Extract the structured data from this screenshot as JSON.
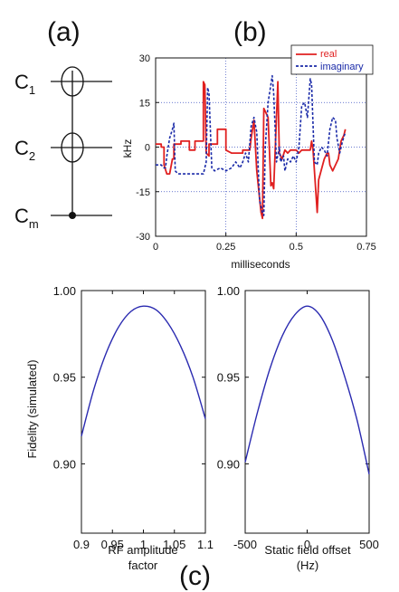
{
  "panels": {
    "a": "(a)",
    "b": "(b)",
    "c": "(c)"
  },
  "circuit": {
    "qubits": [
      {
        "main": "C",
        "sub": "1",
        "type": "target"
      },
      {
        "main": "C",
        "sub": "2",
        "type": "target"
      },
      {
        "main": "C",
        "sub": "m",
        "type": "control"
      }
    ]
  },
  "colors": {
    "real": "#e02020",
    "imaginary": "#1a2aa8",
    "fidelity": "#2a2ab0",
    "grid": "#3a4fc0"
  },
  "chart_data": [
    {
      "type": "line",
      "xlabel": "milliseconds",
      "ylabel": "kHz",
      "xlim": [
        0,
        0.75
      ],
      "ylim": [
        -30,
        30
      ],
      "xticks": [
        "0",
        "0.25",
        "0.5",
        "0.75"
      ],
      "yticks": [
        "30",
        "15",
        "0",
        "-15",
        "-30"
      ],
      "grid": true,
      "legend_position": "top-right",
      "series": [
        {
          "name": "real",
          "style": "solid",
          "points": [
            [
              0,
              1
            ],
            [
              0.02,
              1
            ],
            [
              0.02,
              0
            ],
            [
              0.03,
              0
            ],
            [
              0.03,
              -6
            ],
            [
              0.04,
              -9
            ],
            [
              0.05,
              -9
            ],
            [
              0.06,
              -4
            ],
            [
              0.065,
              -4
            ],
            [
              0.065,
              1
            ],
            [
              0.09,
              1
            ],
            [
              0.09,
              2
            ],
            [
              0.12,
              2
            ],
            [
              0.12,
              -1
            ],
            [
              0.14,
              -1
            ],
            [
              0.14,
              2
            ],
            [
              0.17,
              2
            ],
            [
              0.17,
              22
            ],
            [
              0.175,
              21
            ],
            [
              0.18,
              -2
            ],
            [
              0.19,
              -3
            ],
            [
              0.19,
              1
            ],
            [
              0.22,
              1
            ],
            [
              0.22,
              6
            ],
            [
              0.25,
              6
            ],
            [
              0.25,
              -1
            ],
            [
              0.27,
              -2
            ],
            [
              0.31,
              -2
            ],
            [
              0.31,
              -1
            ],
            [
              0.335,
              -1
            ],
            [
              0.34,
              3
            ],
            [
              0.35,
              9
            ],
            [
              0.36,
              -8
            ],
            [
              0.375,
              -22
            ],
            [
              0.38,
              -24
            ],
            [
              0.385,
              13
            ],
            [
              0.39,
              12
            ],
            [
              0.4,
              10
            ],
            [
              0.41,
              -13
            ],
            [
              0.415,
              -12
            ],
            [
              0.42,
              -14
            ],
            [
              0.435,
              22
            ],
            [
              0.44,
              -2
            ],
            [
              0.45,
              -4
            ],
            [
              0.46,
              -1
            ],
            [
              0.47,
              -2
            ],
            [
              0.48,
              -1
            ],
            [
              0.5,
              -1
            ],
            [
              0.51,
              -2
            ],
            [
              0.52,
              -1
            ],
            [
              0.545,
              -1
            ],
            [
              0.55,
              -1
            ],
            [
              0.555,
              2
            ],
            [
              0.56,
              -1
            ],
            [
              0.575,
              -22
            ],
            [
              0.58,
              -11
            ],
            [
              0.6,
              -4
            ],
            [
              0.61,
              -2
            ],
            [
              0.615,
              -2
            ],
            [
              0.62,
              -6
            ],
            [
              0.63,
              -8
            ],
            [
              0.64,
              -6
            ],
            [
              0.65,
              -4
            ],
            [
              0.66,
              2
            ],
            [
              0.67,
              4
            ],
            [
              0.675,
              6
            ]
          ]
        },
        {
          "name": "imaginary",
          "style": "dashed",
          "points": [
            [
              0,
              -6
            ],
            [
              0.02,
              -6
            ],
            [
              0.03,
              -7
            ],
            [
              0.035,
              -7
            ],
            [
              0.04,
              -3
            ],
            [
              0.05,
              3
            ],
            [
              0.06,
              6
            ],
            [
              0.065,
              8
            ],
            [
              0.07,
              -8
            ],
            [
              0.08,
              -9
            ],
            [
              0.09,
              -9
            ],
            [
              0.12,
              -9
            ],
            [
              0.15,
              -9
            ],
            [
              0.17,
              -9
            ],
            [
              0.18,
              -5
            ],
            [
              0.185,
              20
            ],
            [
              0.19,
              18
            ],
            [
              0.2,
              -7
            ],
            [
              0.21,
              -8
            ],
            [
              0.23,
              -7
            ],
            [
              0.25,
              -8
            ],
            [
              0.27,
              -7
            ],
            [
              0.285,
              -5
            ],
            [
              0.3,
              -7
            ],
            [
              0.31,
              -5
            ],
            [
              0.32,
              -2
            ],
            [
              0.33,
              -5
            ],
            [
              0.34,
              7
            ],
            [
              0.35,
              10
            ],
            [
              0.36,
              5
            ],
            [
              0.37,
              -18
            ],
            [
              0.375,
              -20
            ],
            [
              0.38,
              -22
            ],
            [
              0.385,
              -23
            ],
            [
              0.39,
              0
            ],
            [
              0.4,
              15
            ],
            [
              0.415,
              24
            ],
            [
              0.42,
              18
            ],
            [
              0.43,
              -5
            ],
            [
              0.44,
              0
            ],
            [
              0.445,
              -5
            ],
            [
              0.455,
              -3
            ],
            [
              0.46,
              -8
            ],
            [
              0.47,
              -4
            ],
            [
              0.48,
              -5
            ],
            [
              0.49,
              -3
            ],
            [
              0.5,
              -5
            ],
            [
              0.51,
              0
            ],
            [
              0.52,
              14
            ],
            [
              0.53,
              15
            ],
            [
              0.54,
              10
            ],
            [
              0.55,
              23
            ],
            [
              0.555,
              21
            ],
            [
              0.565,
              -5
            ],
            [
              0.575,
              -6
            ],
            [
              0.58,
              -2
            ],
            [
              0.59,
              0
            ],
            [
              0.6,
              -1
            ],
            [
              0.61,
              -3
            ],
            [
              0.62,
              6
            ],
            [
              0.63,
              10
            ],
            [
              0.64,
              9
            ],
            [
              0.645,
              3
            ],
            [
              0.655,
              -2
            ],
            [
              0.665,
              2
            ],
            [
              0.675,
              5
            ]
          ]
        }
      ]
    },
    {
      "type": "line",
      "xlabel": "RF amplitude\nfactor",
      "ylabel": "Fidelity (simulated)",
      "xlim": [
        0.9,
        1.1
      ],
      "ylim": [
        0.86,
        1.0
      ],
      "xticks": [
        "0.9",
        "0.95",
        "1",
        "1.05",
        "1.1"
      ],
      "yticks": [
        "1.00",
        "0.95",
        "0.90"
      ],
      "grid": false,
      "series": [
        {
          "x": [
            0.9,
            0.92,
            0.94,
            0.96,
            0.98,
            1.0,
            1.02,
            1.04,
            1.06,
            1.08,
            1.1
          ],
          "values": [
            0.916,
            0.943,
            0.964,
            0.979,
            0.988,
            0.991,
            0.989,
            0.981,
            0.968,
            0.95,
            0.926
          ]
        }
      ]
    },
    {
      "type": "line",
      "xlabel": "Static field offset\n(Hz)",
      "ylabel": "",
      "xlim": [
        -500,
        500
      ],
      "ylim": [
        0.86,
        1.0
      ],
      "xticks": [
        "-500",
        "0",
        "500"
      ],
      "yticks": [
        "1.00",
        "0.95",
        "0.90"
      ],
      "grid": false,
      "series": [
        {
          "x": [
            -500,
            -400,
            -300,
            -200,
            -100,
            0,
            100,
            200,
            300,
            400,
            500
          ],
          "values": [
            0.901,
            0.93,
            0.955,
            0.974,
            0.986,
            0.991,
            0.986,
            0.972,
            0.951,
            0.926,
            0.894
          ]
        }
      ]
    }
  ]
}
